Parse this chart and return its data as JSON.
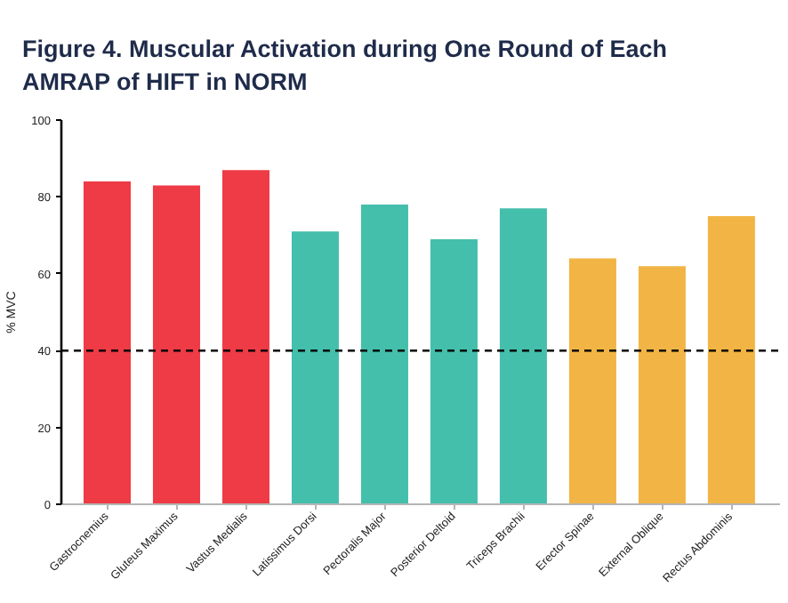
{
  "chart_data": {
    "type": "bar",
    "title": "Figure 4. Muscular Activation during One Round of Each AMRAP of HIFT in NORM",
    "ylabel": "% MVC",
    "categories": [
      "Gastrocnemius",
      "Gluteus Maximus",
      "Vastus Medialis",
      "Latissimus Dorsi",
      "Pectoralis Major",
      "Posterior Deltoid",
      "Triceps Brachii",
      "Erector Spinae",
      "External Oblique",
      "Rectus Abdominis"
    ],
    "values": [
      84,
      83,
      87,
      71,
      78,
      69,
      77,
      64,
      62,
      75
    ],
    "colors": [
      "#ee3b45",
      "#ee3b45",
      "#ee3b45",
      "#44bfab",
      "#44bfab",
      "#44bfab",
      "#44bfab",
      "#f2b545",
      "#f2b545",
      "#f2b545"
    ],
    "ylim": [
      0,
      100
    ],
    "yticks": [
      0,
      20,
      40,
      60,
      80,
      100
    ],
    "ref_lines": [
      {
        "axis": "y",
        "value": 40,
        "color": "#000000",
        "line_style": "dashed"
      }
    ],
    "grid": false
  }
}
